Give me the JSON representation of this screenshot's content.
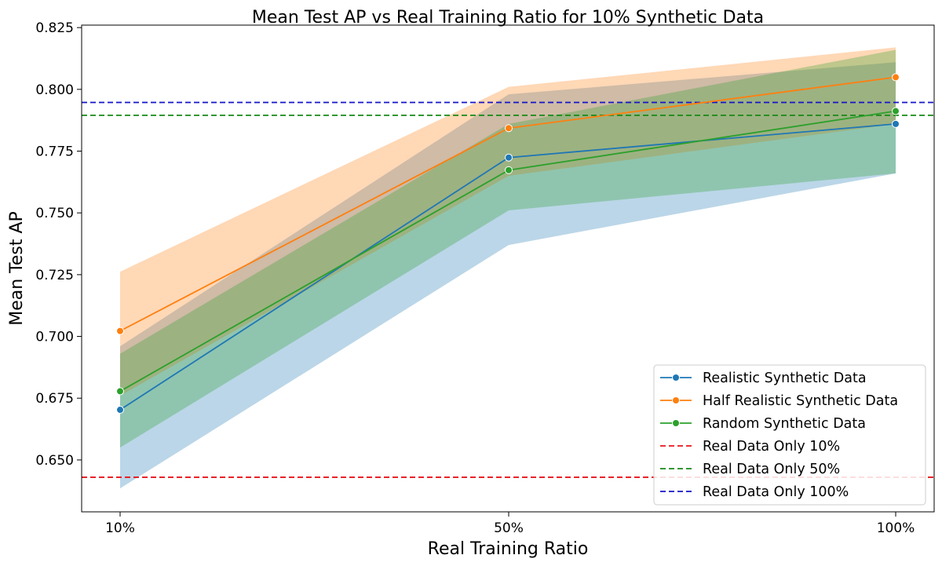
{
  "chart_data": {
    "type": "line",
    "title": "Mean Test AP vs Real Training Ratio for 10% Synthetic Data",
    "xlabel": "Real Training Ratio",
    "ylabel": "Mean Test AP",
    "categories": [
      "10%",
      "50%",
      "100%"
    ],
    "ylim": [
      0.629,
      0.826
    ],
    "yticks": [
      "0.650",
      "0.675",
      "0.700",
      "0.725",
      "0.750",
      "0.775",
      "0.800",
      "0.825"
    ],
    "legend_position": "lower-right",
    "grid": false,
    "series": [
      {
        "name": "Realistic Synthetic Data",
        "color": "#1f77b4",
        "values": [
          0.6703,
          0.7724,
          0.786
        ],
        "ci_lower": [
          0.6385,
          0.737,
          0.766
        ],
        "ci_upper": [
          0.696,
          0.798,
          0.811
        ]
      },
      {
        "name": "Half Realistic Synthetic Data",
        "color": "#ff7f0e",
        "values": [
          0.7022,
          0.7843,
          0.8049
        ],
        "ci_lower": [
          0.676,
          0.765,
          0.786
        ],
        "ci_upper": [
          0.7262,
          0.801,
          0.817
        ]
      },
      {
        "name": "Random Synthetic Data",
        "color": "#2ca02c",
        "values": [
          0.6778,
          0.7673,
          0.7912
        ],
        "ci_lower": [
          0.655,
          0.751,
          0.766
        ],
        "ci_upper": [
          0.693,
          0.786,
          0.816
        ]
      }
    ],
    "reference_lines": [
      {
        "name": "Real Data Only 10%",
        "color": "#e8141b",
        "value": 0.643
      },
      {
        "name": "Real Data Only 50%",
        "color": "#178a17",
        "value": 0.7895
      },
      {
        "name": "Real Data Only 100%",
        "color": "#1414c8",
        "value": 0.7947
      }
    ]
  }
}
